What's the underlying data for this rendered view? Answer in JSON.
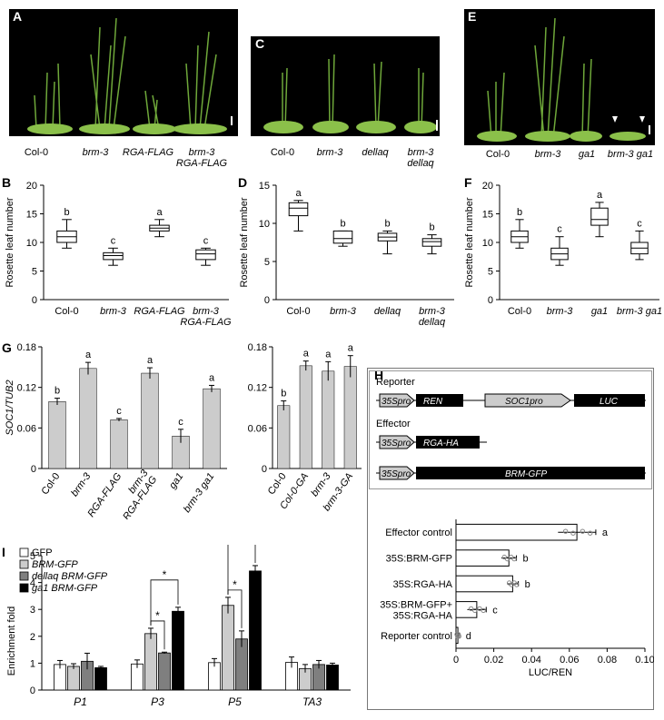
{
  "panels": {
    "A": {
      "label": "A",
      "genotypes": [
        "Col-0",
        "brm-3",
        "RGA-FLAG",
        "brm-3\nRGA-FLAG"
      ]
    },
    "C": {
      "label": "C",
      "genotypes": [
        "Col-0",
        "brm-3",
        "dellaq",
        "brm-3\ndellaq"
      ]
    },
    "E": {
      "label": "E",
      "genotypes": [
        "Col-0",
        "brm-3",
        "ga1",
        "brm-3 ga1"
      ]
    },
    "B": {
      "label": "B"
    },
    "D": {
      "label": "D"
    },
    "F": {
      "label": "F"
    },
    "G": {
      "label": "G"
    },
    "H": {
      "label": "H"
    },
    "I": {
      "label": "I"
    }
  },
  "colors": {
    "bar": "#cccccc",
    "bar_dark": "#7f7f7f",
    "bar_black": "#000000",
    "photo_bg": "#000000",
    "plant_green": "#6fa83a"
  },
  "chart_data": [
    {
      "id": "B",
      "type": "box",
      "ylabel": "Rosette leaf number",
      "ylim": [
        0,
        20
      ],
      "yticks": [
        0,
        5,
        10,
        15,
        20
      ],
      "categories": [
        "Col-0",
        "brm-3",
        "RGA-FLAG",
        "brm-3\nRGA-FLAG"
      ],
      "italic": [
        false,
        true,
        true,
        true
      ],
      "boxes": [
        {
          "min": 9,
          "q1": 10,
          "median": 11,
          "q3": 12,
          "max": 14,
          "letter": "b"
        },
        {
          "min": 6,
          "q1": 7,
          "median": 7.7,
          "q3": 8.2,
          "max": 9,
          "letter": "c"
        },
        {
          "min": 11,
          "q1": 12,
          "median": 12.5,
          "q3": 13,
          "max": 14,
          "letter": "a"
        },
        {
          "min": 6,
          "q1": 7,
          "median": 8,
          "q3": 8.7,
          "max": 9,
          "letter": "c"
        }
      ]
    },
    {
      "id": "D",
      "type": "box",
      "ylabel": "Rosette leaf number",
      "ylim": [
        0,
        15
      ],
      "yticks": [
        0,
        5,
        10,
        15
      ],
      "categories": [
        "Col-0",
        "brm-3",
        "dellaq",
        "brm-3\ndellaq"
      ],
      "italic": [
        false,
        true,
        true,
        true
      ],
      "boxes": [
        {
          "min": 9,
          "q1": 11,
          "median": 12,
          "q3": 12.7,
          "max": 13,
          "letter": "a"
        },
        {
          "min": 7,
          "q1": 7.4,
          "median": 8,
          "q3": 9,
          "max": 9,
          "letter": "b"
        },
        {
          "min": 6,
          "q1": 7.7,
          "median": 8.2,
          "q3": 8.7,
          "max": 9,
          "letter": "b"
        },
        {
          "min": 6,
          "q1": 7,
          "median": 7.6,
          "q3": 8,
          "max": 8.5,
          "letter": "b"
        }
      ]
    },
    {
      "id": "F",
      "type": "box",
      "ylabel": "Rosette leaf number",
      "ylim": [
        0,
        20
      ],
      "yticks": [
        0,
        5,
        10,
        15,
        20
      ],
      "categories": [
        "Col-0",
        "brm-3",
        "ga1",
        "brm-3 ga1"
      ],
      "italic": [
        false,
        true,
        true,
        true
      ],
      "boxes": [
        {
          "min": 9,
          "q1": 10,
          "median": 11,
          "q3": 12,
          "max": 14,
          "letter": "b"
        },
        {
          "min": 6,
          "q1": 7,
          "median": 8,
          "q3": 9,
          "max": 11,
          "letter": "c"
        },
        {
          "min": 11,
          "q1": 13,
          "median": 14,
          "q3": 16,
          "max": 17,
          "letter": "a"
        },
        {
          "min": 7,
          "q1": 8,
          "median": 9,
          "q3": 10,
          "max": 12,
          "letter": "c"
        }
      ]
    },
    {
      "id": "G1",
      "type": "bar",
      "ylabel": "SOC1/TUB2",
      "ylim": [
        0,
        0.18
      ],
      "yticks": [
        "0",
        "0.06",
        "0.12",
        "0.18"
      ],
      "categories": [
        "Col-0",
        "brm-3",
        "RGA-FLAG",
        "brm-3\nRGA-FLAG",
        "ga1",
        "brm-3 ga1"
      ],
      "values": [
        0.099,
        0.148,
        0.072,
        0.141,
        0.048,
        0.118
      ],
      "errors": [
        0.005,
        0.009,
        0.002,
        0.008,
        0.01,
        0.005
      ],
      "letters": [
        "b",
        "a",
        "c",
        "a",
        "c",
        "a"
      ]
    },
    {
      "id": "G2",
      "type": "bar",
      "ylim": [
        0,
        0.18
      ],
      "yticks": [
        "0",
        "0.06",
        "0.12",
        "0.18"
      ],
      "categories": [
        "Col-0",
        "Col-0-GA",
        "brm-3",
        "brm-3-GA"
      ],
      "values": [
        0.093,
        0.152,
        0.144,
        0.151
      ],
      "errors": [
        0.007,
        0.007,
        0.014,
        0.016
      ],
      "letters": [
        "b",
        "a",
        "a",
        "a"
      ]
    },
    {
      "id": "H",
      "type": "hbar",
      "xlabel": "LUC/REN",
      "xlim": [
        0,
        0.1
      ],
      "xticks": [
        "0",
        "0.02",
        "0.04",
        "0.06",
        "0.08",
        "0.10"
      ],
      "categories": [
        "Effector control",
        "35S:BRM-GFP",
        "35S:RGA-HA",
        "35S:BRM-GFP+\n35S:RGA-HA",
        "Reporter control"
      ],
      "values": [
        0.064,
        0.028,
        0.03,
        0.011,
        0.001
      ],
      "errors": [
        0.01,
        0.004,
        0.003,
        0.005,
        0.0008
      ],
      "letters": [
        "a",
        "b",
        "b",
        "c",
        "d"
      ]
    },
    {
      "id": "I",
      "type": "bar",
      "ylabel": "Enrichment fold",
      "ylim": [
        0,
        5
      ],
      "yticks": [
        0,
        1,
        2,
        3,
        4,
        5
      ],
      "categories": [
        "P1",
        "P3",
        "P5",
        "TA3"
      ],
      "series": [
        {
          "name": "GFP",
          "values": [
            0.95,
            0.97,
            1.02,
            1.03
          ],
          "errors": [
            0.15,
            0.15,
            0.15,
            0.2
          ]
        },
        {
          "name": "BRM-GFP",
          "values": [
            0.88,
            2.1,
            3.15,
            0.8
          ],
          "errors": [
            0.1,
            0.2,
            0.3,
            0.15
          ]
        },
        {
          "name": "dellaq BRM-GFP",
          "values": [
            1.07,
            1.38,
            1.9,
            0.95
          ],
          "errors": [
            0.3,
            0.03,
            0.3,
            0.15
          ]
        },
        {
          "name": "ga1 BRM-GFP",
          "values": [
            0.83,
            2.93,
            4.43,
            0.93
          ],
          "errors": [
            0.05,
            0.15,
            0.2,
            0.07
          ]
        }
      ],
      "significance": "*"
    }
  ],
  "construct": {
    "reporter_title": "Reporter",
    "effector_title": "Effector",
    "promoter": "35Spro",
    "ren": "REN",
    "soc1pro": "SOC1pro",
    "luc": "LUC",
    "rga_ha": "RGA-HA",
    "brm_gfp": "BRM-GFP"
  }
}
